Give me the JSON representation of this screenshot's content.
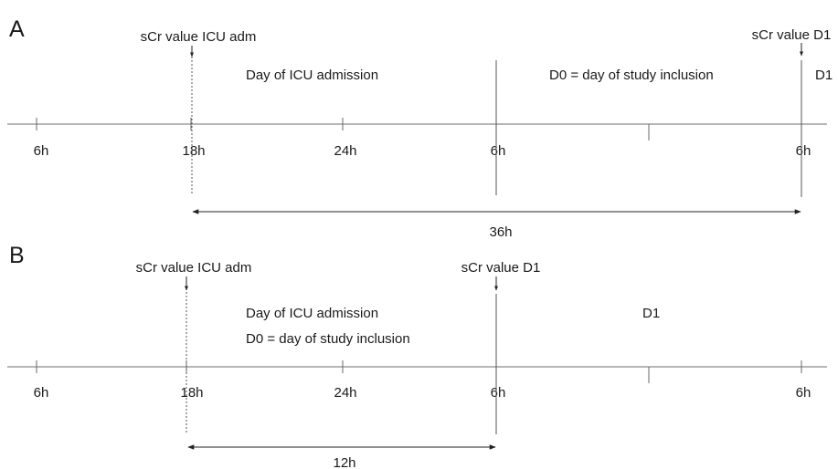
{
  "panel_a": {
    "letter": "A",
    "marker_adm": "sCr value ICU adm",
    "marker_d1": "sCr value D1",
    "period_adm": "Day of ICU admission",
    "period_d0": "D0 = day of study inclusion",
    "period_d1": "D1",
    "ticks": [
      "6h",
      "18h",
      "24h",
      "6h",
      "",
      "6h"
    ],
    "interval": "36h"
  },
  "panel_b": {
    "letter": "B",
    "marker_adm": "sCr value ICU adm",
    "marker_d1": "sCr value D1",
    "period_adm": "Day of ICU admission",
    "period_d0": "D0 = day of study inclusion",
    "period_d1": "D1",
    "ticks": [
      "6h",
      "18h",
      "24h",
      "6h",
      "",
      "6h"
    ],
    "interval": "12h"
  }
}
